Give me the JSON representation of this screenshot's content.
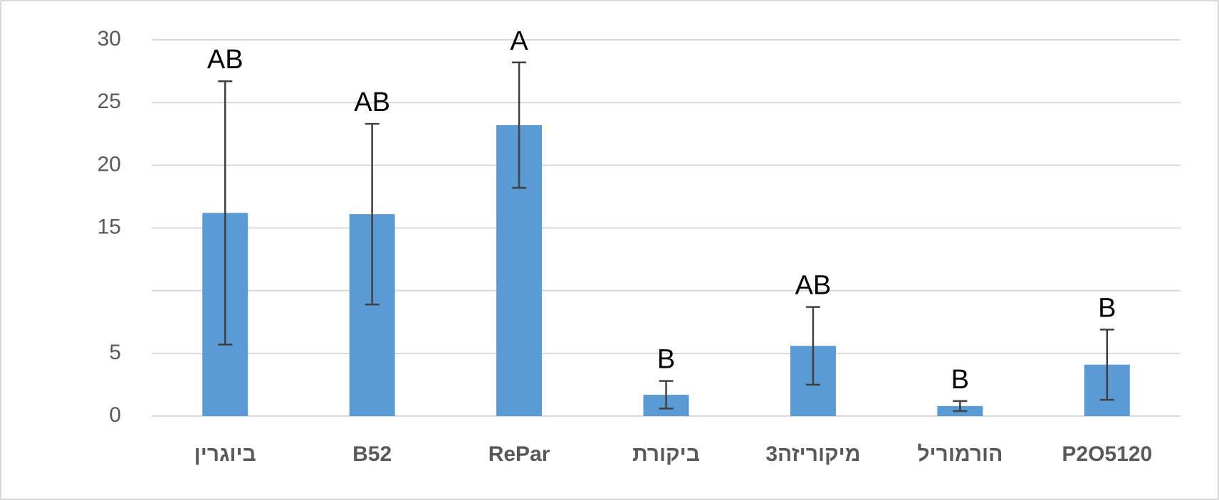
{
  "chart_data": {
    "type": "bar",
    "categories": [
      "ביוגרין",
      "B52",
      "RePar",
      "ביקורת",
      "3מיקוריזה",
      "הורמוריל",
      "P2O5120"
    ],
    "values": [
      16.2,
      16.1,
      23.2,
      1.7,
      5.6,
      0.8,
      4.1
    ],
    "errors": [
      10.5,
      7.2,
      5.0,
      1.1,
      3.1,
      0.4,
      2.8
    ],
    "letters": [
      "AB",
      "AB",
      "A",
      "B",
      "AB",
      "B",
      "B"
    ],
    "color": "#5b9bd5",
    "ylim": [
      0,
      30
    ],
    "yticks": [
      0,
      5,
      {
        "value": 10,
        "label": null
      },
      15,
      20,
      25,
      30
    ],
    "grid": true
  }
}
